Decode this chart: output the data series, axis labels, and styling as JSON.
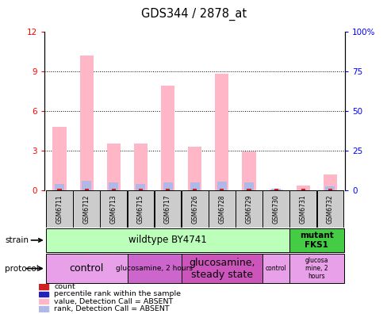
{
  "title": "GDS344 / 2878_at",
  "samples": [
    "GSM6711",
    "GSM6712",
    "GSM6713",
    "GSM6715",
    "GSM6717",
    "GSM6726",
    "GSM6728",
    "GSM6729",
    "GSM6730",
    "GSM6731",
    "GSM6732"
  ],
  "pink_values": [
    4.8,
    10.2,
    3.5,
    3.5,
    7.9,
    3.3,
    8.8,
    2.9,
    0.05,
    0.35,
    1.2
  ],
  "blue_values": [
    0.45,
    0.7,
    0.55,
    0.45,
    0.6,
    0.55,
    0.65,
    0.55,
    0.1,
    0.0,
    0.3
  ],
  "red_values": [
    0.1,
    0.1,
    0.1,
    0.1,
    0.1,
    0.1,
    0.1,
    0.1,
    0.1,
    0.1,
    0.1
  ],
  "ylim_left": [
    0,
    12
  ],
  "ylim_right": [
    0,
    100
  ],
  "yticks_left": [
    0,
    3,
    6,
    9,
    12
  ],
  "yticks_right": [
    0,
    25,
    50,
    75,
    100
  ],
  "ytick_labels_right": [
    "0",
    "25",
    "50",
    "75",
    "100%"
  ],
  "pink_color": "#ffb6c6",
  "blue_color": "#b0b8e8",
  "red_color": "#cc2222",
  "darkblue_color": "#2222bb",
  "bg_color": "#ffffff",
  "sample_box_color": "#cccccc",
  "strain_wt_color": "#bbffbb",
  "strain_mut_color": "#44cc44",
  "prot_light_color": "#e8a0e8",
  "prot_dark_color": "#cc66cc",
  "prot_darkest_color": "#cc55bb",
  "legend_items": [
    {
      "color": "#cc2222",
      "label": "count"
    },
    {
      "color": "#2222bb",
      "label": "percentile rank within the sample"
    },
    {
      "color": "#ffb6c6",
      "label": "value, Detection Call = ABSENT"
    },
    {
      "color": "#b0b8e8",
      "label": "rank, Detection Call = ABSENT"
    }
  ]
}
